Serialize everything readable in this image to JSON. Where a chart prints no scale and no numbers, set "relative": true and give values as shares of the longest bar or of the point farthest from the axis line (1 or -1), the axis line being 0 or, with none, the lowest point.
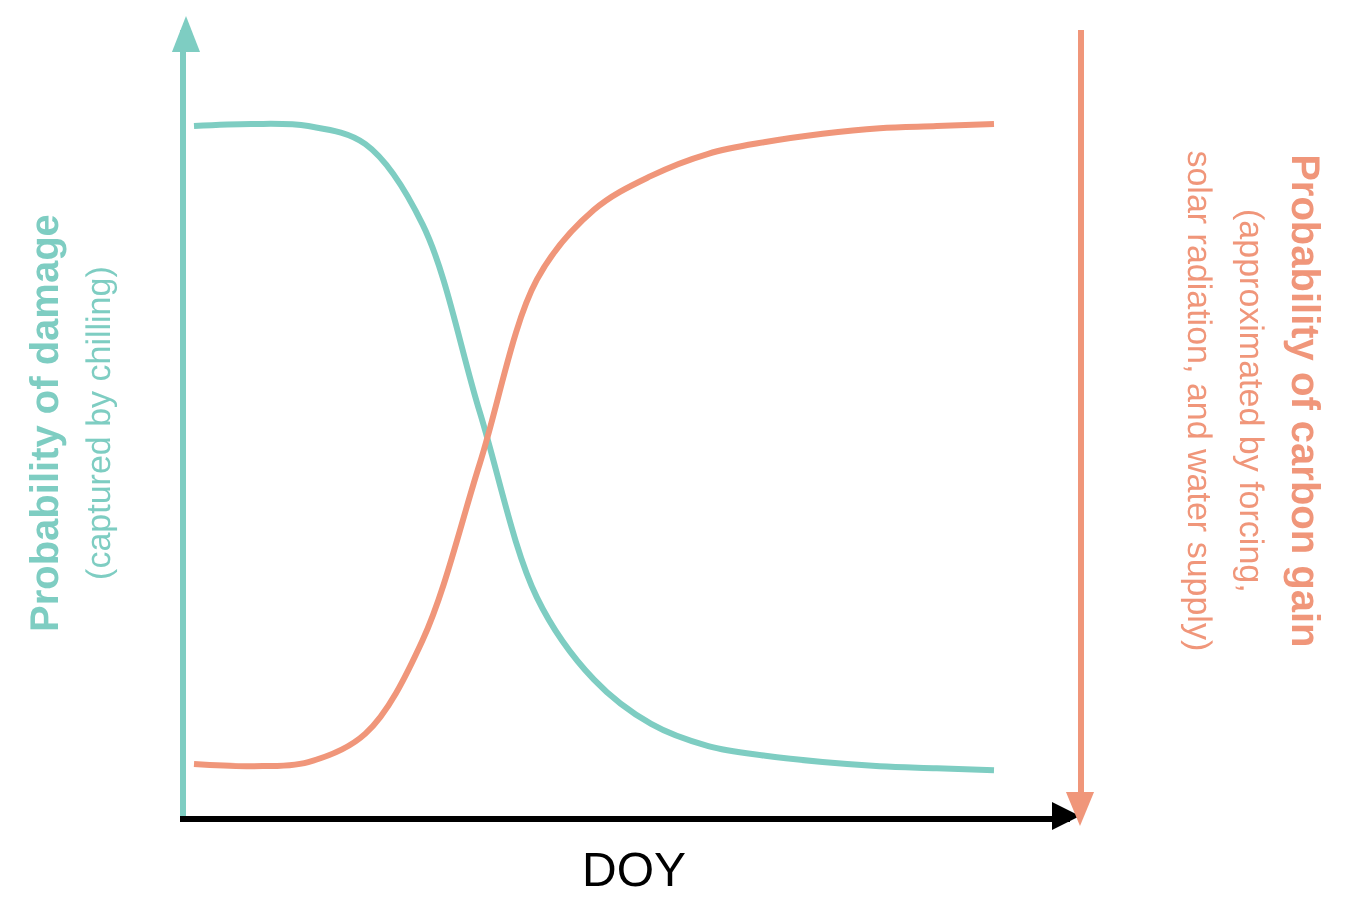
{
  "chart_data": {
    "type": "line",
    "relative": true,
    "xlabel": "DOY",
    "ylabel": "Probability of damage\n(captured by chilling)",
    "y2label": "Probability of carbon gain\n(approximated by forcing,\nsolar radiation, and water supply)",
    "categories": [
      null,
      null,
      null,
      null,
      null,
      null,
      null,
      null,
      null,
      null,
      null,
      null,
      null,
      null,
      null
    ],
    "series": [
      {
        "color": "#7ecdc2",
        "values": [
          0.997,
          1.0,
          0.997,
          0.971,
          0.855,
          0.584,
          0.316,
          0.197,
          0.133,
          0.101,
          0.087,
          0.078,
          0.072,
          0.069,
          0.066
        ]
      },
      {
        "color": "#f0967a",
        "values": [
          0.075,
          0.072,
          0.078,
          0.119,
          0.254,
          0.509,
          0.775,
          0.876,
          0.925,
          0.957,
          0.974,
          0.986,
          0.994,
          0.997,
          1.0
        ]
      }
    ],
    "marker": "none",
    "line_style": "solid"
  }
}
